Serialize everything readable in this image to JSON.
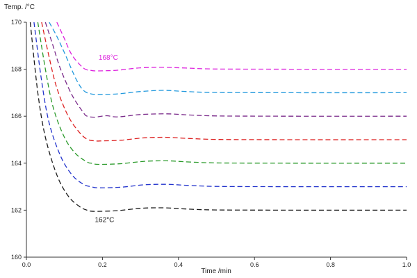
{
  "chart_data": {
    "type": "line",
    "title": "",
    "xlabel": "Time /min",
    "ylabel": "Temp. /°C",
    "xlim": [
      0.0,
      1.0
    ],
    "ylim": [
      160,
      170
    ],
    "x_ticks": [
      0.0,
      0.2,
      0.4,
      0.6,
      0.8,
      1.0
    ],
    "x_tick_labels": [
      "0.0",
      "0.2",
      "0.4",
      "0.6",
      "0.8",
      "1.0"
    ],
    "y_ticks": [
      160,
      162,
      164,
      166,
      168,
      170
    ],
    "y_tick_labels": [
      "160",
      "162",
      "164",
      "166",
      "168",
      "170"
    ],
    "grid": false,
    "line_style": "dashed",
    "series": [
      {
        "color": "#1a1a1a",
        "x": [
          0.01,
          0.03,
          0.05,
          0.08,
          0.11,
          0.14,
          0.16,
          0.18,
          0.24,
          0.3,
          0.36,
          0.42,
          0.5,
          0.7,
          1.0
        ],
        "y": [
          170.0,
          167.0,
          165.1,
          163.5,
          162.6,
          162.15,
          162.0,
          161.95,
          161.98,
          162.08,
          162.1,
          162.05,
          162.01,
          162.0,
          162.0
        ]
      },
      {
        "color": "#2233cc",
        "x": [
          0.02,
          0.04,
          0.06,
          0.09,
          0.12,
          0.15,
          0.17,
          0.19,
          0.25,
          0.31,
          0.37,
          0.43,
          0.51,
          0.7,
          1.0
        ],
        "y": [
          170.0,
          167.5,
          165.7,
          164.3,
          163.5,
          163.1,
          163.0,
          162.95,
          162.98,
          163.08,
          163.1,
          163.05,
          163.01,
          163.0,
          163.0
        ]
      },
      {
        "color": "#2a9a2a",
        "x": [
          0.03,
          0.05,
          0.07,
          0.1,
          0.13,
          0.16,
          0.17,
          0.19,
          0.25,
          0.31,
          0.37,
          0.43,
          0.51,
          0.7,
          1.0
        ],
        "y": [
          170.0,
          168.0,
          166.4,
          165.1,
          164.4,
          164.05,
          164.0,
          163.95,
          163.98,
          164.08,
          164.1,
          164.05,
          164.01,
          164.0,
          164.0
        ]
      },
      {
        "color": "#dd2222",
        "x": [
          0.04,
          0.06,
          0.08,
          0.11,
          0.14,
          0.16,
          0.18,
          0.2,
          0.25,
          0.31,
          0.37,
          0.43,
          0.51,
          0.7,
          1.0
        ],
        "y": [
          170.0,
          168.5,
          167.2,
          166.0,
          165.3,
          165.02,
          164.95,
          164.95,
          164.98,
          165.08,
          165.1,
          165.05,
          165.01,
          165.0,
          165.0
        ]
      },
      {
        "color": "#7a2a8a",
        "x": [
          0.05,
          0.07,
          0.09,
          0.12,
          0.15,
          0.16,
          0.18,
          0.21,
          0.24,
          0.3,
          0.37,
          0.43,
          0.51,
          0.7,
          1.0
        ],
        "y": [
          170.0,
          169.0,
          168.0,
          166.9,
          166.15,
          166.0,
          165.96,
          166.02,
          165.97,
          166.07,
          166.1,
          166.05,
          166.01,
          166.0,
          166.0
        ]
      },
      {
        "color": "#2299dd",
        "x": [
          0.06,
          0.08,
          0.1,
          0.13,
          0.15,
          0.17,
          0.19,
          0.24,
          0.3,
          0.36,
          0.42,
          0.5,
          0.7,
          1.0
        ],
        "y": [
          170.0,
          169.4,
          168.7,
          167.6,
          167.1,
          166.95,
          166.93,
          166.95,
          167.05,
          167.1,
          167.05,
          167.01,
          167.0,
          167.0
        ]
      },
      {
        "color": "#dd22dd",
        "x": [
          0.08,
          0.1,
          0.12,
          0.15,
          0.17,
          0.19,
          0.24,
          0.3,
          0.36,
          0.42,
          0.5,
          0.7,
          1.0
        ],
        "y": [
          170.0,
          169.3,
          168.6,
          168.05,
          167.95,
          167.93,
          167.96,
          168.06,
          168.08,
          168.05,
          168.01,
          168.0,
          168.0
        ]
      }
    ],
    "annotations": [
      {
        "text": "168°C",
        "x": 0.19,
        "y": 168.4,
        "color": "#dd22dd"
      },
      {
        "text": "162°C",
        "x": 0.18,
        "y": 161.5,
        "color": "#1a1a1a"
      }
    ]
  }
}
